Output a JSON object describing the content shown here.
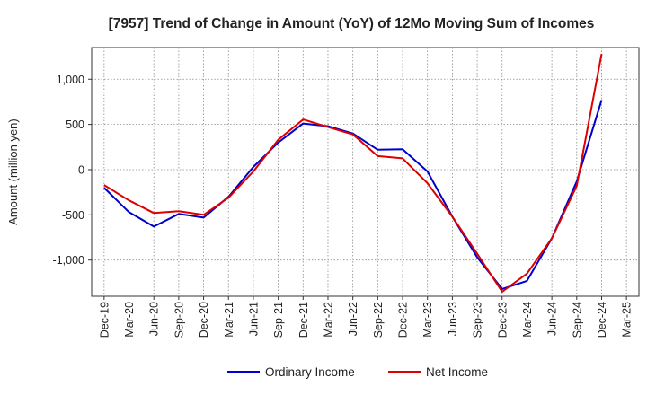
{
  "chart_data": {
    "type": "line",
    "title": "[7957]  Trend of Change in Amount (YoY) of 12Mo Moving Sum of Incomes",
    "xlabel": "",
    "ylabel": "Amount (million yen)",
    "ylim": [
      -1400,
      1350
    ],
    "yticks": [
      -1000,
      -500,
      0,
      500,
      1000
    ],
    "ytick_labels": [
      "-1,000",
      "-500",
      "0",
      "500",
      "1,000"
    ],
    "categories": [
      "Dec-19",
      "Mar-20",
      "Jun-20",
      "Sep-20",
      "Dec-20",
      "Mar-21",
      "Jun-21",
      "Sep-21",
      "Dec-21",
      "Mar-22",
      "Jun-22",
      "Sep-22",
      "Dec-22",
      "Mar-23",
      "Jun-23",
      "Sep-23",
      "Dec-23",
      "Mar-24",
      "Jun-24",
      "Sep-24",
      "Dec-24",
      "Mar-25"
    ],
    "series": [
      {
        "name": "Ordinary Income",
        "color": "#0000cc",
        "values": [
          -200,
          -470,
          -630,
          -490,
          -530,
          -300,
          30,
          300,
          510,
          480,
          400,
          220,
          225,
          -20,
          -520,
          -970,
          -1320,
          -1230,
          -760,
          -130,
          770,
          null
        ]
      },
      {
        "name": "Net Income",
        "color": "#dd0000",
        "values": [
          -170,
          -340,
          -480,
          -460,
          -500,
          -310,
          -20,
          330,
          555,
          470,
          390,
          150,
          125,
          -150,
          -520,
          -930,
          -1350,
          -1150,
          -760,
          -180,
          1280,
          null
        ]
      }
    ],
    "legend": "bottom-center",
    "grid": true
  }
}
